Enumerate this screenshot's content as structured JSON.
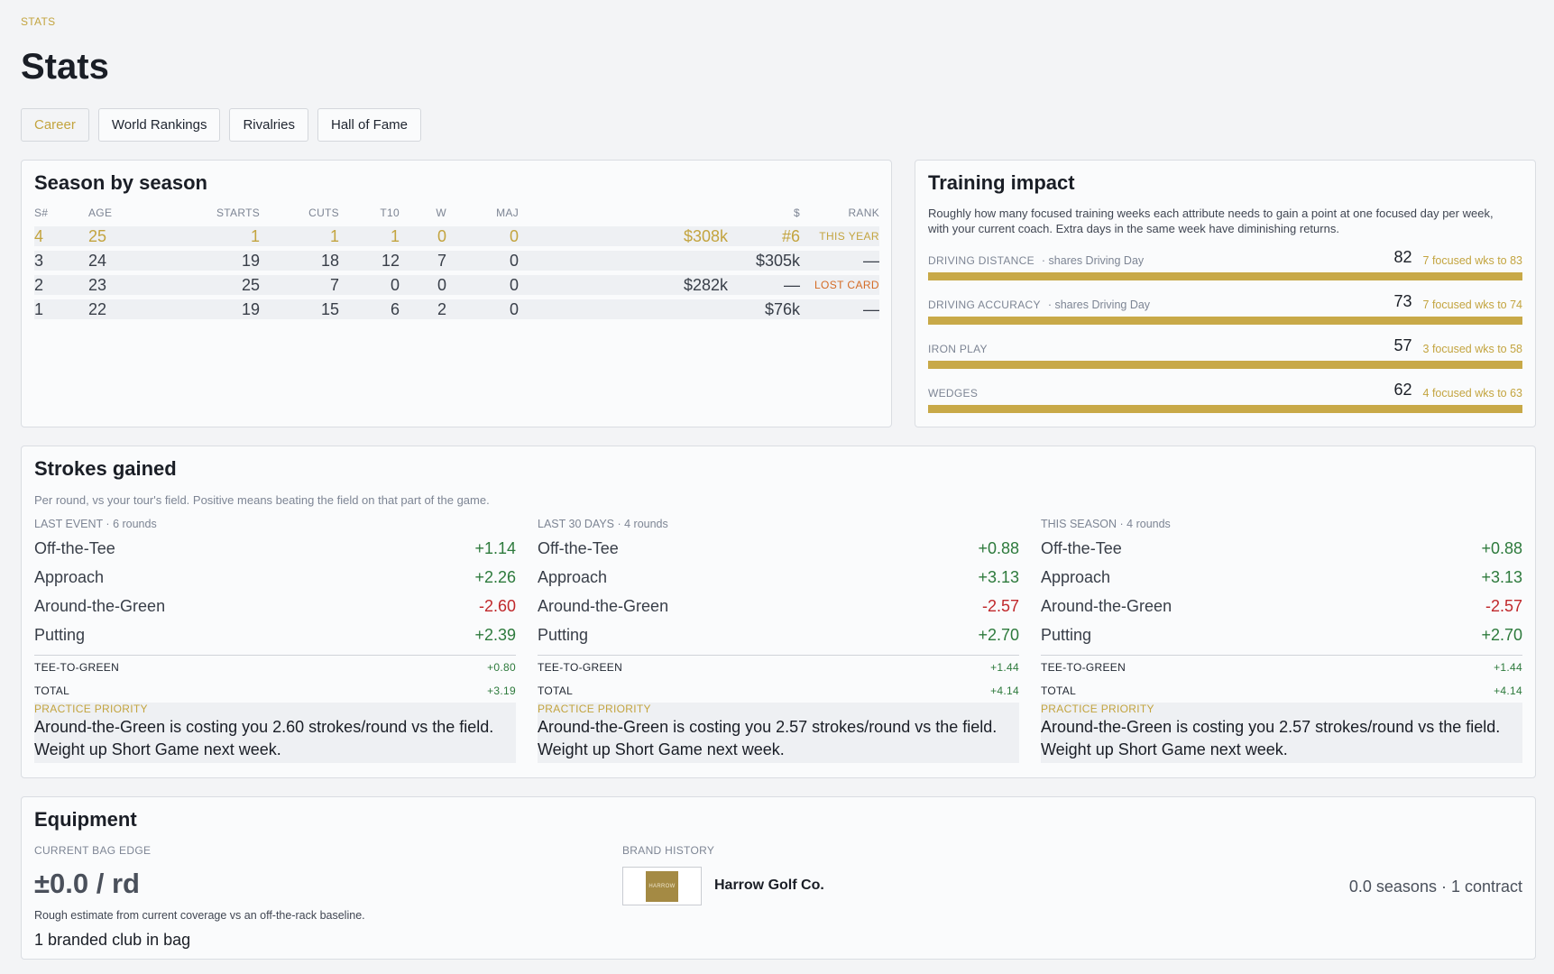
{
  "breadcrumb": "STATS",
  "page_title": "Stats",
  "tabs": [
    {
      "label": "Career",
      "active": true
    },
    {
      "label": "World Rankings",
      "active": false
    },
    {
      "label": "Rivalries",
      "active": false
    },
    {
      "label": "Hall of Fame",
      "active": false
    }
  ],
  "season": {
    "title": "Season by season",
    "headers": [
      "S#",
      "AGE",
      "STARTS",
      "CUTS",
      "T10",
      "W",
      "MAJ",
      "$",
      "RANK"
    ],
    "rows": [
      {
        "s": "4",
        "age": "25",
        "starts": "1",
        "cuts": "1",
        "t10": "1",
        "w": "0",
        "maj": "0",
        "money": "$308k",
        "rank": "#6",
        "tag": "THIS YEAR"
      },
      {
        "s": "3",
        "age": "24",
        "starts": "19",
        "cuts": "18",
        "t10": "12",
        "w": "7",
        "maj": "0",
        "money": "$305k",
        "rank": "—",
        "tag": ""
      },
      {
        "s": "2",
        "age": "23",
        "starts": "25",
        "cuts": "7",
        "t10": "0",
        "w": "0",
        "maj": "0",
        "money": "$282k",
        "rank": "—",
        "tag": "LOST CARD"
      },
      {
        "s": "1",
        "age": "22",
        "starts": "19",
        "cuts": "15",
        "t10": "6",
        "w": "2",
        "maj": "0",
        "money": "$76k",
        "rank": "—",
        "tag": ""
      }
    ]
  },
  "training": {
    "title": "Training impact",
    "description": "Roughly how many focused training weeks each attribute needs to gain a point at one focused day per week, with your current coach. Extra days in the same week have diminishing returns.",
    "attributes": [
      {
        "name": "DRIVING DISTANCE",
        "share": "·  shares Driving Day",
        "value": "82",
        "note": "7 focused wks to 83",
        "level": 1.0
      },
      {
        "name": "DRIVING ACCURACY",
        "share": "·  shares Driving Day",
        "value": "73",
        "note": "7 focused wks to 74",
        "level": 1.0
      },
      {
        "name": "IRON PLAY",
        "share": "",
        "value": "57",
        "note": "3 focused wks to 58",
        "level": 1.0
      },
      {
        "name": "WEDGES",
        "share": "",
        "value": "62",
        "note": "4 focused wks to 63",
        "level": 1.0
      }
    ]
  },
  "strokes": {
    "title": "Strokes gained",
    "description": "Per round, vs your tour's field. Positive means beating the field on that part of the game.",
    "columns": [
      {
        "period": "LAST EVENT · 6 rounds",
        "lines": [
          {
            "label": "Off-the-Tee",
            "value": "+1.14",
            "sign": "pos"
          },
          {
            "label": "Approach",
            "value": "+2.26",
            "sign": "pos"
          },
          {
            "label": "Around-the-Green",
            "value": "-2.60",
            "sign": "neg"
          },
          {
            "label": "Putting",
            "value": "+2.39",
            "sign": "pos"
          }
        ],
        "ttg_label": "TEE-TO-GREEN",
        "ttg_value": "+0.80",
        "total_label": "TOTAL",
        "total_value": "+3.19",
        "priority_label": "PRACTICE PRIORITY",
        "priority_text": "Around-the-Green is costing you 2.60 strokes/round vs the field. Weight up Short Game next week."
      },
      {
        "period": "LAST 30 DAYS · 4 rounds",
        "lines": [
          {
            "label": "Off-the-Tee",
            "value": "+0.88",
            "sign": "pos"
          },
          {
            "label": "Approach",
            "value": "+3.13",
            "sign": "pos"
          },
          {
            "label": "Around-the-Green",
            "value": "-2.57",
            "sign": "neg"
          },
          {
            "label": "Putting",
            "value": "+2.70",
            "sign": "pos"
          }
        ],
        "ttg_label": "TEE-TO-GREEN",
        "ttg_value": "+1.44",
        "total_label": "TOTAL",
        "total_value": "+4.14",
        "priority_label": "PRACTICE PRIORITY",
        "priority_text": "Around-the-Green is costing you 2.57 strokes/round vs the field. Weight up Short Game next week."
      },
      {
        "period": "THIS SEASON · 4 rounds",
        "lines": [
          {
            "label": "Off-the-Tee",
            "value": "+0.88",
            "sign": "pos"
          },
          {
            "label": "Approach",
            "value": "+3.13",
            "sign": "pos"
          },
          {
            "label": "Around-the-Green",
            "value": "-2.57",
            "sign": "neg"
          },
          {
            "label": "Putting",
            "value": "+2.70",
            "sign": "pos"
          }
        ],
        "ttg_label": "TEE-TO-GREEN",
        "ttg_value": "+1.44",
        "total_label": "TOTAL",
        "total_value": "+4.14",
        "priority_label": "PRACTICE PRIORITY",
        "priority_text": "Around-the-Green is costing you 2.57 strokes/round vs the field. Weight up Short Game next week."
      }
    ]
  },
  "equipment": {
    "title": "Equipment",
    "bag_edge_label": "CURRENT BAG EDGE",
    "bag_edge_value": "±0.0 / rd",
    "bag_edge_note": "Rough estimate from current coverage vs an off-the-rack baseline.",
    "branded_count": "1 branded club in bag",
    "brand_history_label": "BRAND HISTORY",
    "brand_logo_text": "HARROW",
    "brand_name": "Harrow Golf Co.",
    "brand_summary": "0.0 seasons · 1 contract"
  },
  "colors": {
    "accent": "#c3a43f",
    "positive": "#2d7a3c",
    "negative": "#c0282b",
    "lost_card": "#d46b25"
  }
}
